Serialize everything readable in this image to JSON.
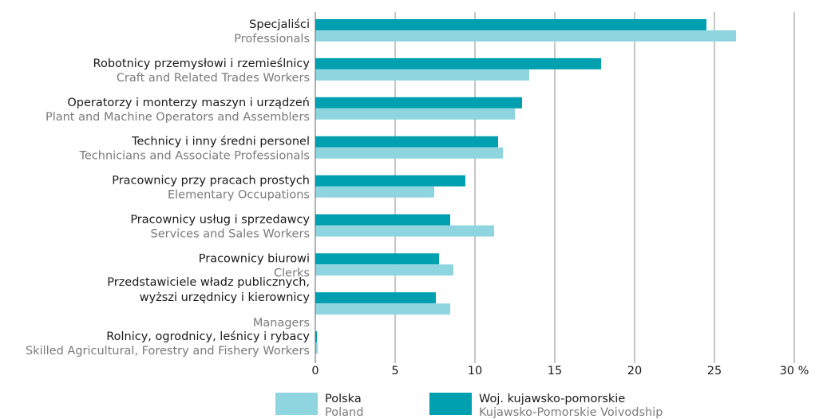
{
  "chart_data": {
    "type": "bar",
    "orientation": "horizontal",
    "categories": [
      [
        "Specjaliści"
      ],
      [
        "Robotnicy przemysłowi i rzemieślnicy"
      ],
      [
        "Operatorzy i monterzy maszyn i urządzeń"
      ],
      [
        "Technicy i inny średni personel"
      ],
      [
        "Pracownicy przy pracach prostych"
      ],
      [
        "Pracownicy usług i sprzedawcy"
      ],
      [
        "Pracownicy biurowi"
      ],
      [
        "Przedstawiciele władz publicznych,",
        "wyższi urzędnicy i kierownicy"
      ],
      [
        "Rolnicy, ogrodnicy, leśnicy i rybacy"
      ]
    ],
    "categories_en": [
      "Professionals",
      "Craft and Related Trades Workers",
      "Plant and Machine Operators and Assemblers",
      "Technicians and Associate Professionals",
      "Elementary Occupations",
      "Services and Sales Workers",
      "Clerks",
      "Managers",
      "Skilled Agricultural, Forestry and Fishery Workers"
    ],
    "series": [
      {
        "name": "Woj. kujawsko-pomorskie",
        "name_en": "Kujawsko-Pomorskie Voivodship",
        "color": "#00a0b0",
        "values": [
          24.5,
          17.9,
          12.95,
          11.45,
          9.4,
          8.45,
          7.75,
          7.55,
          0.1
        ]
      },
      {
        "name": "Polska",
        "name_en": "Poland",
        "color": "#8fd5df",
        "values": [
          26.35,
          13.4,
          12.5,
          11.75,
          7.45,
          11.2,
          8.65,
          8.45,
          0.15
        ]
      }
    ],
    "xlim": [
      0,
      30
    ],
    "xticks": [
      0,
      5,
      10,
      15,
      20,
      25,
      {
        "value": 30,
        "label": "30 %"
      }
    ],
    "grid": true
  }
}
